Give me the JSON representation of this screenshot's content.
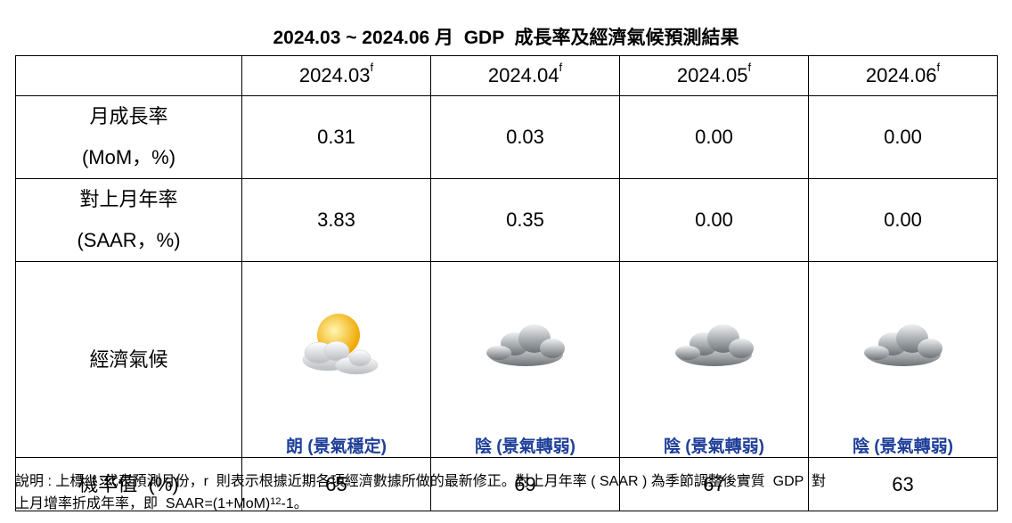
{
  "title": "2024.03 ~ 2024.06 月  GDP  成長率及經濟氣候預測結果",
  "table": {
    "columns": [
      {
        "label": "2024.03",
        "sup": "f"
      },
      {
        "label": "2024.04",
        "sup": "f"
      },
      {
        "label": "2024.05",
        "sup": "f"
      },
      {
        "label": "2024.06",
        "sup": "f"
      }
    ],
    "rows": [
      {
        "label": [
          "月成長率",
          "(MoM，%)"
        ],
        "cells": [
          "0.31",
          "0.03",
          "0.00",
          "0.00"
        ]
      },
      {
        "label": [
          "對上月年率",
          "(SAAR，%)"
        ],
        "cells": [
          "3.83",
          "0.35",
          "0.00",
          "0.00"
        ]
      },
      {
        "label": [
          "經濟氣候"
        ],
        "cells": [
          "朗 (景氣穩定)",
          "陰 (景氣轉弱)",
          "陰 (景氣轉弱)",
          "陰 (景氣轉弱)"
        ]
      },
      {
        "label": [
          "機率值  (%)"
        ],
        "cells": [
          "65",
          "69",
          "67",
          "63"
        ]
      }
    ]
  },
  "note": {
    "line1": "說明 : 上標  f  代表預測月份，r  則表示根據近期各項經濟數據所做的最新修正。對上月年率 ( SAAR ) 為季節調整後實質  GDP  對",
    "line2_before": "上月增率折成年率，即  SAAR=(1+MoM)",
    "line2_sup": "12",
    "line2_after": "-1。"
  }
}
